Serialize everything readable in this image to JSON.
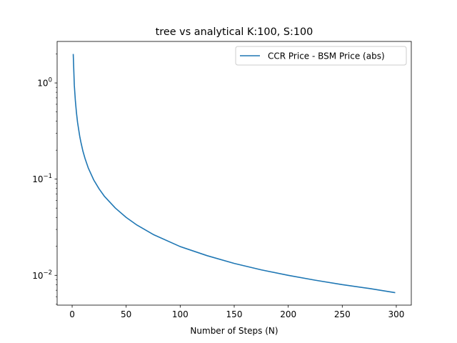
{
  "chart_data": {
    "type": "line",
    "title": "tree vs analytical K:100, S:100",
    "xlabel": "Number of Steps (N)",
    "ylabel": "",
    "xlim": [
      -13.9,
      313.9
    ],
    "ylim": [
      0.0049,
      2.7
    ],
    "yscale": "log",
    "grid": false,
    "legend_position": "top-right",
    "x_ticks": [
      {
        "value": 0,
        "label": "0"
      },
      {
        "value": 50,
        "label": "50"
      },
      {
        "value": 100,
        "label": "100"
      },
      {
        "value": 150,
        "label": "150"
      },
      {
        "value": 200,
        "label": "200"
      },
      {
        "value": 250,
        "label": "250"
      },
      {
        "value": 300,
        "label": "300"
      }
    ],
    "y_ticks": [
      {
        "value": 0.01,
        "base": "10",
        "exp": "−2"
      },
      {
        "value": 0.1,
        "base": "10",
        "exp": "−1"
      },
      {
        "value": 1,
        "base": "10",
        "exp": "0"
      }
    ],
    "series": [
      {
        "name": "CCR Price - BSM Price (abs)",
        "color": "#1f77b4",
        "x": [
          1,
          2,
          3,
          4,
          5,
          6,
          7,
          8,
          10,
          12,
          15,
          20,
          25,
          30,
          40,
          50,
          60,
          75,
          100,
          125,
          150,
          175,
          200,
          225,
          250,
          275,
          299
        ],
        "y": [
          2.0,
          0.95,
          0.65,
          0.49,
          0.39,
          0.33,
          0.28,
          0.245,
          0.195,
          0.163,
          0.13,
          0.098,
          0.079,
          0.066,
          0.05,
          0.04,
          0.0333,
          0.0266,
          0.0199,
          0.016,
          0.0133,
          0.0114,
          0.01,
          0.0089,
          0.008,
          0.0073,
          0.0066
        ]
      }
    ]
  }
}
